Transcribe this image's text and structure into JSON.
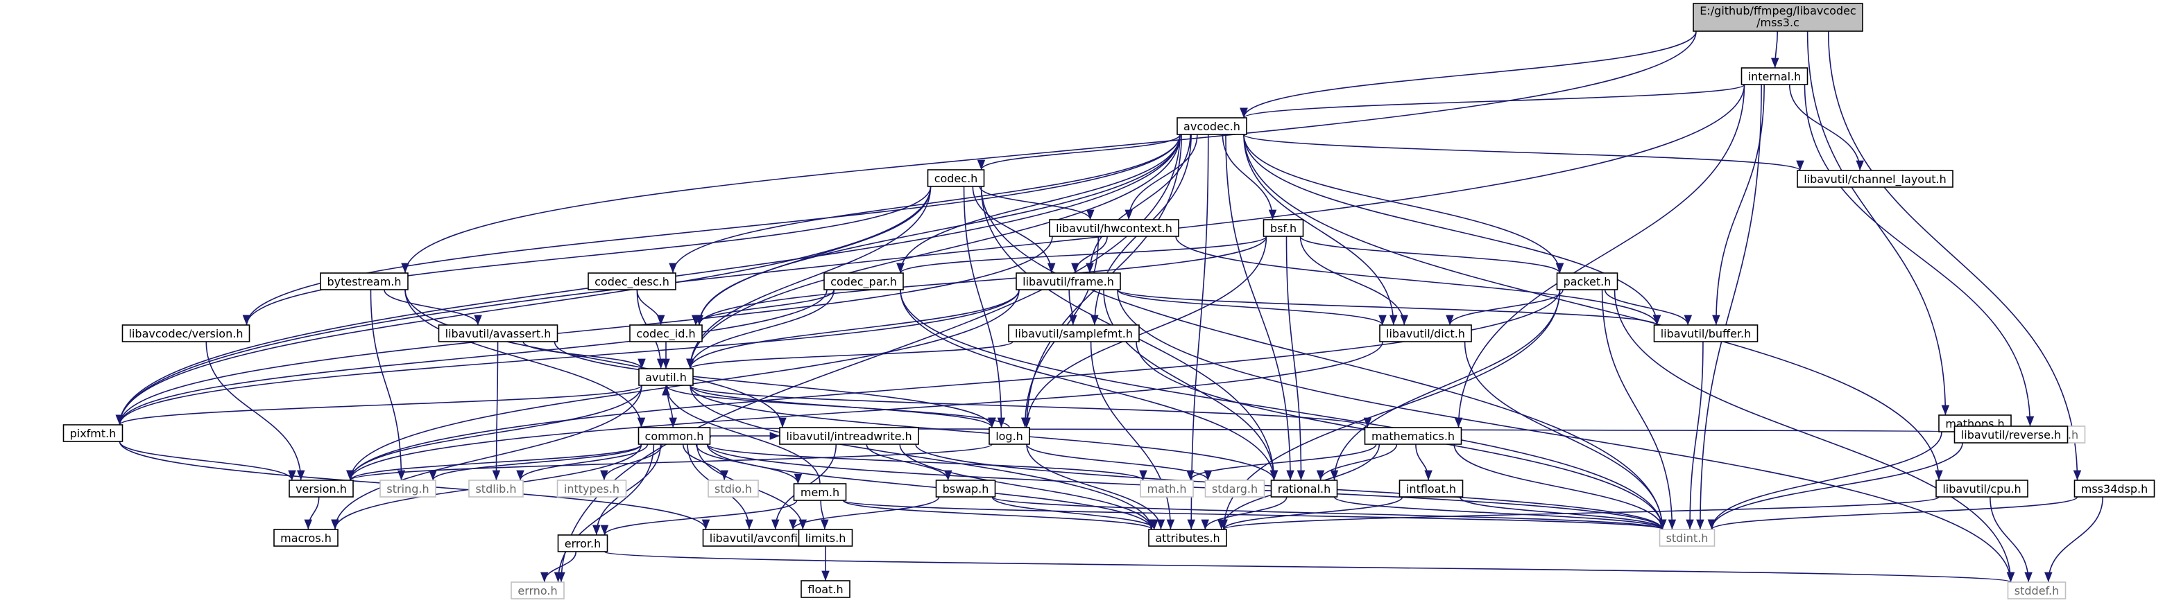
{
  "diagram": {
    "type": "include-dependency-graph",
    "colors": {
      "edge": "#191970",
      "root_fill": "#bfbfbf",
      "node_border": "#000000",
      "external_border": "#bfbfbf",
      "external_text": "#666666"
    },
    "nodes": [
      {
        "id": "mss3c",
        "lines": [
          "E:/github/ffmpeg/libavcodec",
          "/mss3.c"
        ],
        "kind": "root"
      },
      {
        "id": "internal",
        "lines": [
          "internal.h"
        ],
        "kind": "normal"
      },
      {
        "id": "avcodec",
        "lines": [
          "avcodec.h"
        ],
        "kind": "normal"
      },
      {
        "id": "chlayout",
        "lines": [
          "libavutil/channel_layout.h"
        ],
        "kind": "normal"
      },
      {
        "id": "codec",
        "lines": [
          "codec.h"
        ],
        "kind": "normal"
      },
      {
        "id": "hwcontext",
        "lines": [
          "libavutil/hwcontext.h"
        ],
        "kind": "normal"
      },
      {
        "id": "bsf",
        "lines": [
          "bsf.h"
        ],
        "kind": "normal"
      },
      {
        "id": "bytestream",
        "lines": [
          "bytestream.h"
        ],
        "kind": "normal"
      },
      {
        "id": "codecdesc",
        "lines": [
          "codec_desc.h"
        ],
        "kind": "normal"
      },
      {
        "id": "codecpar",
        "lines": [
          "codec_par.h"
        ],
        "kind": "normal"
      },
      {
        "id": "frame",
        "lines": [
          "libavutil/frame.h"
        ],
        "kind": "normal"
      },
      {
        "id": "packet",
        "lines": [
          "packet.h"
        ],
        "kind": "normal"
      },
      {
        "id": "lcversion",
        "lines": [
          "libavcodec/version.h"
        ],
        "kind": "normal"
      },
      {
        "id": "avassert",
        "lines": [
          "libavutil/avassert.h"
        ],
        "kind": "normal"
      },
      {
        "id": "codecid",
        "lines": [
          "codec_id.h"
        ],
        "kind": "normal"
      },
      {
        "id": "samplefmt",
        "lines": [
          "libavutil/samplefmt.h"
        ],
        "kind": "normal"
      },
      {
        "id": "dict",
        "lines": [
          "libavutil/dict.h"
        ],
        "kind": "normal"
      },
      {
        "id": "buffer",
        "lines": [
          "libavutil/buffer.h"
        ],
        "kind": "normal"
      },
      {
        "id": "mathops",
        "lines": [
          "mathops.h"
        ],
        "kind": "normal"
      },
      {
        "id": "avutil",
        "lines": [
          "avutil.h"
        ],
        "kind": "normal"
      },
      {
        "id": "pixfmt",
        "lines": [
          "pixfmt.h"
        ],
        "kind": "normal"
      },
      {
        "id": "common",
        "lines": [
          "common.h"
        ],
        "kind": "normal"
      },
      {
        "id": "intreadwrite",
        "lines": [
          "libavutil/intreadwrite.h"
        ],
        "kind": "normal"
      },
      {
        "id": "log",
        "lines": [
          "log.h"
        ],
        "kind": "normal"
      },
      {
        "id": "mathematics",
        "lines": [
          "mathematics.h"
        ],
        "kind": "normal"
      },
      {
        "id": "configh",
        "lines": [
          "config.h"
        ],
        "kind": "external"
      },
      {
        "id": "reverse",
        "lines": [
          "libavutil/reverse.h"
        ],
        "kind": "normal"
      },
      {
        "id": "version",
        "lines": [
          "version.h"
        ],
        "kind": "normal"
      },
      {
        "id": "stringh",
        "lines": [
          "string.h"
        ],
        "kind": "external"
      },
      {
        "id": "stdlib",
        "lines": [
          "stdlib.h"
        ],
        "kind": "external"
      },
      {
        "id": "inttypes",
        "lines": [
          "inttypes.h"
        ],
        "kind": "external"
      },
      {
        "id": "stdio",
        "lines": [
          "stdio.h"
        ],
        "kind": "external"
      },
      {
        "id": "mathh",
        "lines": [
          "math.h"
        ],
        "kind": "external"
      },
      {
        "id": "stdarg",
        "lines": [
          "stdarg.h"
        ],
        "kind": "external"
      },
      {
        "id": "rational",
        "lines": [
          "rational.h"
        ],
        "kind": "normal"
      },
      {
        "id": "intfloat",
        "lines": [
          "intfloat.h"
        ],
        "kind": "normal"
      },
      {
        "id": "cpu",
        "lines": [
          "libavutil/cpu.h"
        ],
        "kind": "normal"
      },
      {
        "id": "mss34dsp",
        "lines": [
          "mss34dsp.h"
        ],
        "kind": "normal"
      },
      {
        "id": "mem",
        "lines": [
          "mem.h"
        ],
        "kind": "normal"
      },
      {
        "id": "bswap",
        "lines": [
          "bswap.h"
        ],
        "kind": "normal"
      },
      {
        "id": "macros",
        "lines": [
          "macros.h"
        ],
        "kind": "normal"
      },
      {
        "id": "error",
        "lines": [
          "error.h"
        ],
        "kind": "normal"
      },
      {
        "id": "avconfig",
        "lines": [
          "libavutil/avconfig.h"
        ],
        "kind": "normal"
      },
      {
        "id": "limits",
        "lines": [
          "limits.h"
        ],
        "kind": "normal"
      },
      {
        "id": "attributes",
        "lines": [
          "attributes.h"
        ],
        "kind": "normal"
      },
      {
        "id": "stdint",
        "lines": [
          "stdint.h"
        ],
        "kind": "external"
      },
      {
        "id": "floath",
        "lines": [
          "float.h"
        ],
        "kind": "normal"
      },
      {
        "id": "errno",
        "lines": [
          "errno.h"
        ],
        "kind": "external"
      },
      {
        "id": "stddef",
        "lines": [
          "stddef.h"
        ],
        "kind": "external"
      }
    ],
    "edges": [
      [
        "mss3c",
        "internal"
      ],
      [
        "mss3c",
        "avcodec"
      ],
      [
        "mss3c",
        "bytestream"
      ],
      [
        "mss3c",
        "mathops"
      ],
      [
        "mss3c",
        "mss34dsp"
      ],
      [
        "internal",
        "avcodec"
      ],
      [
        "internal",
        "chlayout"
      ],
      [
        "internal",
        "buffer"
      ],
      [
        "internal",
        "pixfmt"
      ],
      [
        "internal",
        "mathematics"
      ],
      [
        "internal",
        "configh"
      ],
      [
        "internal",
        "stdint"
      ],
      [
        "avcodec",
        "codec"
      ],
      [
        "avcodec",
        "hwcontext"
      ],
      [
        "avcodec",
        "bsf"
      ],
      [
        "avcodec",
        "codecdesc"
      ],
      [
        "avcodec",
        "codecpar"
      ],
      [
        "avcodec",
        "frame"
      ],
      [
        "avcodec",
        "packet"
      ],
      [
        "avcodec",
        "lcversion"
      ],
      [
        "avcodec",
        "codecid"
      ],
      [
        "avcodec",
        "samplefmt"
      ],
      [
        "avcodec",
        "dict"
      ],
      [
        "avcodec",
        "buffer"
      ],
      [
        "avcodec",
        "avutil"
      ],
      [
        "avcodec",
        "pixfmt"
      ],
      [
        "avcodec",
        "log"
      ],
      [
        "avcodec",
        "rational"
      ],
      [
        "avcodec",
        "attributes"
      ],
      [
        "avcodec",
        "cpu"
      ],
      [
        "avcodec",
        "chlayout"
      ],
      [
        "avcodec",
        "errno"
      ],
      [
        "codec",
        "hwcontext"
      ],
      [
        "codec",
        "frame"
      ],
      [
        "codec",
        "codecid"
      ],
      [
        "codec",
        "avutil"
      ],
      [
        "codec",
        "pixfmt"
      ],
      [
        "codec",
        "log"
      ],
      [
        "codec",
        "rational"
      ],
      [
        "codec",
        "lcversion"
      ],
      [
        "codec",
        "stdint"
      ],
      [
        "hwcontext",
        "frame"
      ],
      [
        "hwcontext",
        "buffer"
      ],
      [
        "hwcontext",
        "log"
      ],
      [
        "hwcontext",
        "pixfmt"
      ],
      [
        "bsf",
        "codecid"
      ],
      [
        "bsf",
        "codecpar"
      ],
      [
        "bsf",
        "packet"
      ],
      [
        "bsf",
        "dict"
      ],
      [
        "bsf",
        "log"
      ],
      [
        "bsf",
        "rational"
      ],
      [
        "bytestream",
        "avassert"
      ],
      [
        "bytestream",
        "intreadwrite"
      ],
      [
        "bytestream",
        "common"
      ],
      [
        "bytestream",
        "stringh"
      ],
      [
        "codecdesc",
        "codecid"
      ],
      [
        "codecdesc",
        "avutil"
      ],
      [
        "codecpar",
        "codecid"
      ],
      [
        "codecpar",
        "avutil"
      ],
      [
        "codecpar",
        "pixfmt"
      ],
      [
        "codecpar",
        "rational"
      ],
      [
        "codecpar",
        "stdint"
      ],
      [
        "frame",
        "avutil"
      ],
      [
        "frame",
        "buffer"
      ],
      [
        "frame",
        "dict"
      ],
      [
        "frame",
        "rational"
      ],
      [
        "frame",
        "samplefmt"
      ],
      [
        "frame",
        "pixfmt"
      ],
      [
        "frame",
        "version"
      ],
      [
        "frame",
        "stddef"
      ],
      [
        "packet",
        "buffer"
      ],
      [
        "packet",
        "dict"
      ],
      [
        "packet",
        "attributes"
      ],
      [
        "packet",
        "rational"
      ],
      [
        "packet",
        "stdint"
      ],
      [
        "packet",
        "stddef"
      ],
      [
        "packet",
        "version"
      ],
      [
        "lcversion",
        "version"
      ],
      [
        "avassert",
        "avutil"
      ],
      [
        "avassert",
        "log"
      ],
      [
        "avassert",
        "stdlib"
      ],
      [
        "codecid",
        "avutil"
      ],
      [
        "samplefmt",
        "avutil"
      ],
      [
        "samplefmt",
        "attributes"
      ],
      [
        "samplefmt",
        "stdint"
      ],
      [
        "dict",
        "version"
      ],
      [
        "dict",
        "stdint"
      ],
      [
        "buffer",
        "stdint"
      ],
      [
        "mathops",
        "common"
      ],
      [
        "mathops",
        "reverse"
      ],
      [
        "mathops",
        "configh"
      ],
      [
        "mathops",
        "stdint"
      ],
      [
        "avutil",
        "common"
      ],
      [
        "avutil",
        "pixfmt"
      ],
      [
        "avutil",
        "rational"
      ],
      [
        "avutil",
        "log"
      ],
      [
        "avutil",
        "mathematics"
      ],
      [
        "avutil",
        "version"
      ],
      [
        "avutil",
        "macros"
      ],
      [
        "avutil",
        "attributes"
      ],
      [
        "pixfmt",
        "version"
      ],
      [
        "pixfmt",
        "avconfig"
      ],
      [
        "common",
        "version"
      ],
      [
        "common",
        "stringh"
      ],
      [
        "common",
        "stdlib"
      ],
      [
        "common",
        "inttypes"
      ],
      [
        "common",
        "stdio"
      ],
      [
        "common",
        "mathh"
      ],
      [
        "common",
        "mem"
      ],
      [
        "common",
        "error"
      ],
      [
        "common",
        "attributes"
      ],
      [
        "common",
        "macros"
      ],
      [
        "common",
        "avconfig"
      ],
      [
        "common",
        "limits"
      ],
      [
        "common",
        "errno"
      ],
      [
        "common",
        "stdint"
      ],
      [
        "common",
        "intreadwrite"
      ],
      [
        "intreadwrite",
        "avconfig"
      ],
      [
        "intreadwrite",
        "attributes"
      ],
      [
        "intreadwrite",
        "bswap"
      ],
      [
        "intreadwrite",
        "stdint"
      ],
      [
        "log",
        "version"
      ],
      [
        "log",
        "attributes"
      ],
      [
        "log",
        "stdarg"
      ],
      [
        "log",
        "avutil"
      ],
      [
        "mathematics",
        "mathh"
      ],
      [
        "mathematics",
        "attributes"
      ],
      [
        "mathematics",
        "rational"
      ],
      [
        "mathematics",
        "intfloat"
      ],
      [
        "mathematics",
        "stdint"
      ],
      [
        "reverse",
        "stdint"
      ],
      [
        "rational",
        "attributes"
      ],
      [
        "rational",
        "stdint"
      ],
      [
        "intfloat",
        "attributes"
      ],
      [
        "intfloat",
        "stdint"
      ],
      [
        "cpu",
        "attributes"
      ],
      [
        "cpu",
        "stddef"
      ],
      [
        "mss34dsp",
        "stdint"
      ],
      [
        "mss34dsp",
        "stddef"
      ],
      [
        "mem",
        "attributes"
      ],
      [
        "mem",
        "error"
      ],
      [
        "mem",
        "avutil"
      ],
      [
        "mem",
        "limits"
      ],
      [
        "mem",
        "stdint"
      ],
      [
        "bswap",
        "attributes"
      ],
      [
        "bswap",
        "avconfig"
      ],
      [
        "bswap",
        "stdint"
      ],
      [
        "error",
        "errno"
      ],
      [
        "error",
        "stddef"
      ],
      [
        "limits",
        "floath"
      ],
      [
        "version",
        "macros"
      ]
    ]
  }
}
